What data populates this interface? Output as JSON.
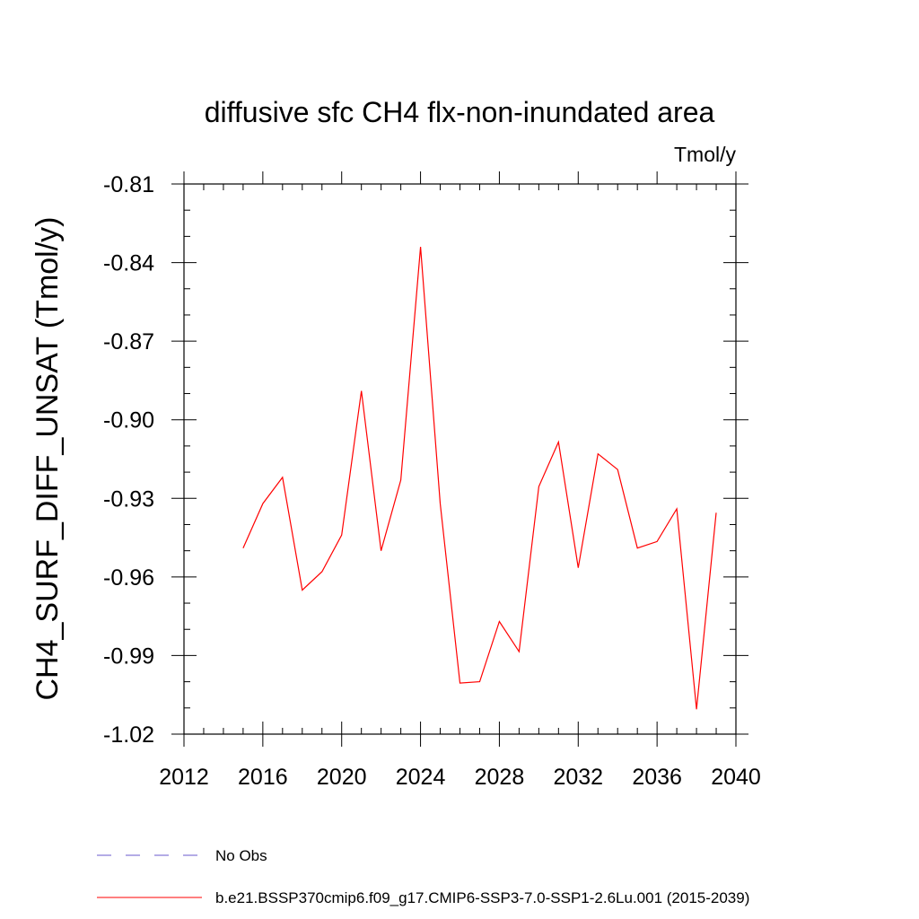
{
  "chart_data": {
    "type": "line",
    "title": "diffusive sfc CH4 flx-non-inundated area",
    "units": "Tmol/y",
    "ylabel": "CH4_SURF_DIFF_UNSAT  (Tmol/y)",
    "xlabel": "",
    "xlim": [
      2012,
      2040
    ],
    "ylim": [
      -1.02,
      -0.81
    ],
    "x_ticks": [
      2012,
      2016,
      2020,
      2024,
      2028,
      2032,
      2036,
      2040
    ],
    "x_tick_labels": [
      "2012",
      "2016",
      "2020",
      "2024",
      "2028",
      "2032",
      "2036",
      "2040"
    ],
    "y_ticks": [
      -0.81,
      -0.84,
      -0.87,
      -0.9,
      -0.93,
      -0.96,
      -0.99,
      -1.02
    ],
    "y_tick_labels": [
      "-0.81",
      "-0.84",
      "-0.87",
      "-0.90",
      "-0.93",
      "-0.96",
      "-0.99",
      "-1.02"
    ],
    "grid": false,
    "legend_position": "bottom",
    "series": [
      {
        "name": "b.e21.BSSP370cmip6.f09_g17.CMIP6-SSP3-7.0-SSP1-2.6Lu.001 (2015-2039)",
        "color": "#ff0000",
        "x": [
          2015,
          2016,
          2017,
          2018,
          2019,
          2020,
          2021,
          2022,
          2023,
          2024,
          2025,
          2026,
          2027,
          2028,
          2029,
          2030,
          2031,
          2032,
          2033,
          2034,
          2035,
          2036,
          2037,
          2038,
          2039
        ],
        "y": [
          -0.949,
          -0.932,
          -0.922,
          -0.965,
          -0.958,
          -0.944,
          -0.889,
          -0.95,
          -0.923,
          -0.834,
          -0.932,
          -1.0005,
          -1.0,
          -0.977,
          -0.9885,
          -0.9255,
          -0.9085,
          -0.9565,
          -0.913,
          -0.919,
          -0.949,
          -0.9465,
          -0.934,
          -1.0105,
          -0.9355
        ]
      }
    ],
    "legend": [
      {
        "label": "No Obs",
        "color": "#6a5acd",
        "style": "dashed"
      },
      {
        "label": "b.e21.BSSP370cmip6.f09_g17.CMIP6-SSP3-7.0-SSP1-2.6Lu.001 (2015-2039)",
        "color": "#ff0000",
        "style": "solid"
      }
    ]
  }
}
